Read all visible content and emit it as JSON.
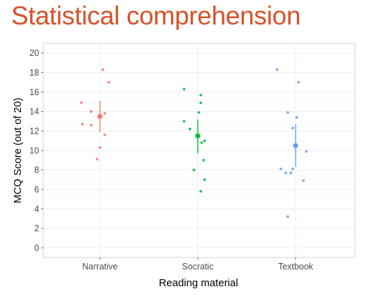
{
  "slide": {
    "title": "Statistical comprehension"
  },
  "chart_data": {
    "type": "scatter",
    "title": "",
    "xlabel": "Reading material",
    "ylabel": "MCQ Score (out of 20)",
    "categories": [
      "Narrative",
      "Socratic",
      "Textbook"
    ],
    "ylim": [
      -1,
      21
    ],
    "yticks": [
      0,
      2,
      4,
      6,
      8,
      10,
      12,
      14,
      16,
      18,
      20
    ],
    "grid": true,
    "legend": "none",
    "series": [
      {
        "category": "Narrative",
        "color": "#f8766d",
        "points": [
          {
            "x": -0.19,
            "y": 14.9
          },
          {
            "x": -0.09,
            "y": 14.0
          },
          {
            "x": 0.05,
            "y": 13.8
          },
          {
            "x": -0.18,
            "y": 12.7
          },
          {
            "x": -0.09,
            "y": 12.6
          },
          {
            "x": 0.05,
            "y": 11.6
          },
          {
            "x": 0.03,
            "y": 18.3
          },
          {
            "x": 0.09,
            "y": 17.0
          },
          {
            "x": 0.0,
            "y": 10.3
          },
          {
            "x": -0.03,
            "y": 9.1
          }
        ],
        "mean": 13.5,
        "interval": [
          11.9,
          15.1
        ]
      },
      {
        "category": "Socratic",
        "color": "#00ba38",
        "points": [
          {
            "x": -0.14,
            "y": 16.3
          },
          {
            "x": 0.03,
            "y": 15.7
          },
          {
            "x": 0.03,
            "y": 14.9
          },
          {
            "x": 0.01,
            "y": 13.9
          },
          {
            "x": -0.14,
            "y": 13.0
          },
          {
            "x": -0.08,
            "y": 12.2
          },
          {
            "x": 0.07,
            "y": 11.0
          },
          {
            "x": 0.04,
            "y": 10.8
          },
          {
            "x": 0.06,
            "y": 9.0
          },
          {
            "x": -0.04,
            "y": 8.0
          },
          {
            "x": 0.07,
            "y": 7.0
          },
          {
            "x": 0.03,
            "y": 5.8
          }
        ],
        "mean": 11.5,
        "interval": [
          9.7,
          13.2
        ]
      },
      {
        "category": "Textbook",
        "color": "#619cff",
        "points": [
          {
            "x": -0.19,
            "y": 18.3
          },
          {
            "x": 0.03,
            "y": 17.0
          },
          {
            "x": -0.08,
            "y": 13.9
          },
          {
            "x": 0.01,
            "y": 13.4
          },
          {
            "x": -0.03,
            "y": 12.3
          },
          {
            "x": 0.11,
            "y": 9.9
          },
          {
            "x": -0.15,
            "y": 8.1
          },
          {
            "x": -0.03,
            "y": 8.1
          },
          {
            "x": -0.1,
            "y": 7.7
          },
          {
            "x": -0.05,
            "y": 7.7
          },
          {
            "x": 0.08,
            "y": 6.9
          },
          {
            "x": -0.08,
            "y": 3.2
          }
        ],
        "mean": 10.5,
        "interval": [
          8.3,
          12.7
        ]
      }
    ]
  }
}
